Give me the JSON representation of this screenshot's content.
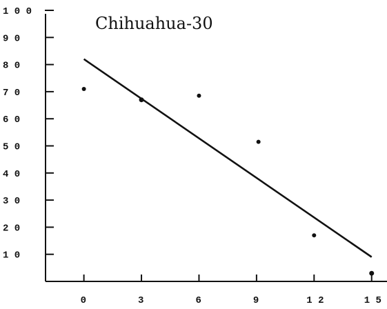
{
  "chart_data": {
    "type": "scatter",
    "title": "Chihuahua-30",
    "xlabel": "",
    "ylabel": "",
    "x_ticks": [
      0,
      3,
      6,
      9,
      12,
      15
    ],
    "x_tick_labels": [
      "0",
      "3",
      "6",
      "9",
      "1 2",
      "1 5"
    ],
    "y_ticks": [
      10,
      20,
      30,
      40,
      50,
      60,
      70,
      80,
      90,
      100
    ],
    "y_tick_labels": [
      "1 0",
      "2 0",
      "3 0",
      "4 0",
      "5 0",
      "6 0",
      "7 0",
      "8 0",
      "9 0",
      "1 0 0"
    ],
    "xlim": [
      -2,
      15
    ],
    "ylim": [
      0,
      100
    ],
    "series": [
      {
        "points": [
          {
            "x": 0,
            "y": 71
          },
          {
            "x": 3,
            "y": 67
          },
          {
            "x": 6,
            "y": 68.5
          },
          {
            "x": 9.1,
            "y": 51.5
          },
          {
            "x": 12,
            "y": 17
          },
          {
            "x": 15,
            "y": 3
          }
        ]
      }
    ],
    "trend_line": {
      "start": {
        "x": 0,
        "y": 82
      },
      "end": {
        "x": 15,
        "y": 9
      }
    },
    "grid": false,
    "legend": "none",
    "color": "#111111"
  }
}
